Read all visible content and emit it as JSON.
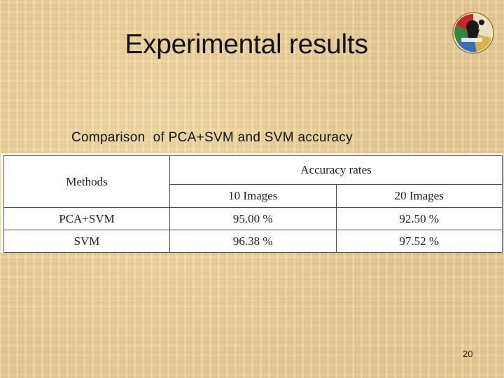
{
  "slide": {
    "title": "Experimental results",
    "subtitle": "Comparison  of PCA+SVM and SVM accuracy",
    "page_number": "20"
  },
  "table": {
    "header_methods": "Methods",
    "header_group": "Accuracy rates",
    "subheaders": [
      "10 Images",
      "20 Images"
    ],
    "rows": [
      {
        "method": "PCA+SVM",
        "values": [
          "95.00 %",
          "92.50 %"
        ]
      },
      {
        "method": "SVM",
        "values": [
          "96.38 %",
          "97.52 %"
        ]
      }
    ]
  },
  "logo": {
    "icon": "university-crest-icon",
    "colors": {
      "red": "#c8242b",
      "green": "#2e8b3a",
      "blue": "#3a6fb5",
      "black": "#1a1a1a",
      "gold": "#d9b24a"
    }
  },
  "colors": {
    "background": "#e6cf9a",
    "text": "#111111",
    "table_border": "#4a4a4a"
  }
}
